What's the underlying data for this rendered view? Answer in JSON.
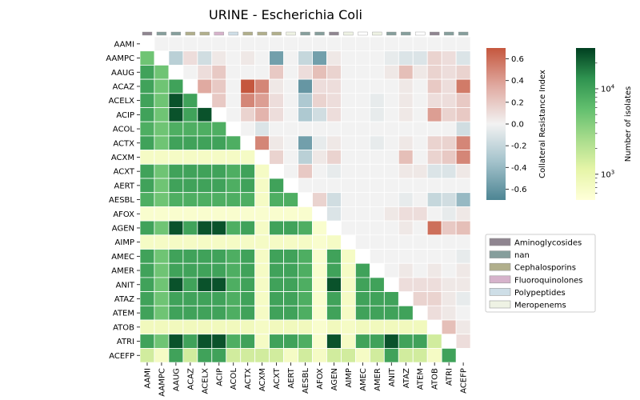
{
  "chart_data": {
    "type": "heatmap",
    "title": "URINE - Escherichia Coli",
    "labels": [
      "AAMI",
      "AAMPC",
      "AAUG",
      "ACAZ",
      "ACELX",
      "ACIP",
      "ACOL",
      "ACTX",
      "ACXM",
      "ACXT",
      "AERT",
      "AESBL",
      "AFOX",
      "AGEN",
      "AIMP",
      "AMEC",
      "AMER",
      "ANIT",
      "ATAZ",
      "ATEM",
      "ATOB",
      "ATRI",
      "ACEFP"
    ],
    "class_colors": [
      "#8f8590",
      "#869e9c",
      "#869e9c",
      "#b1af8c",
      "#b1af8c",
      "#d6b3cb",
      "#cedee7",
      "#b1af8c",
      "#b1af8c",
      "#b1af8c",
      "#eef2e4",
      "#869e9c",
      "#869e9c",
      "#8f8590",
      "#eef2e4",
      "#ffffff",
      "#eef2e4",
      "#869e9c",
      "#869e9c",
      "#ffffff",
      "#8f8590",
      "#869e9c",
      "#869e9c"
    ],
    "upper_cri": [
      [
        null,
        0,
        0,
        0,
        0,
        0,
        0,
        0,
        0,
        0,
        0,
        0,
        0,
        0,
        0,
        0,
        0,
        0,
        0,
        0,
        0,
        0,
        0
      ],
      [
        null,
        null,
        -0.25,
        0.1,
        -0.15,
        0.05,
        0,
        0.05,
        0,
        -0.55,
        0,
        -0.2,
        -0.55,
        0.05,
        0,
        0,
        0,
        -0.05,
        -0.1,
        -0.1,
        0.15,
        0.1,
        -0.1
      ],
      [
        null,
        null,
        null,
        0,
        0.1,
        0.2,
        0,
        0,
        0,
        0.2,
        0,
        0.1,
        0.25,
        0.15,
        0,
        0,
        0,
        0.05,
        0.25,
        0.05,
        0.15,
        0.1,
        0.15
      ],
      [
        null,
        null,
        null,
        null,
        0.35,
        0.2,
        0,
        0.7,
        0.5,
        0.05,
        0,
        -0.6,
        0.1,
        0.1,
        0,
        0,
        0,
        0,
        0.05,
        0,
        0.2,
        0.1,
        0.55
      ],
      [
        null,
        null,
        null,
        null,
        null,
        0.2,
        0,
        0.5,
        0.4,
        0.1,
        0,
        -0.3,
        0.15,
        0.1,
        0,
        0,
        -0.05,
        0,
        0.05,
        0,
        0.1,
        0.1,
        0.2
      ],
      [
        null,
        null,
        null,
        null,
        null,
        null,
        0,
        0.15,
        0.3,
        0.1,
        0,
        -0.3,
        -0.15,
        0.1,
        0,
        0,
        -0.05,
        0,
        0.05,
        0,
        0.4,
        0.15,
        0.2
      ],
      [
        null,
        null,
        null,
        null,
        null,
        null,
        null,
        0,
        -0.1,
        0,
        0,
        0,
        0,
        0,
        0,
        0,
        0,
        0,
        0,
        0,
        0,
        0,
        -0.15
      ],
      [
        null,
        null,
        null,
        null,
        null,
        null,
        null,
        null,
        0.5,
        0.05,
        0,
        -0.55,
        -0.05,
        0.05,
        0,
        0,
        -0.05,
        0,
        0.05,
        0,
        0.15,
        0.15,
        0.5
      ],
      [
        null,
        null,
        null,
        null,
        null,
        null,
        null,
        null,
        null,
        0.15,
        0,
        -0.25,
        0.05,
        0.15,
        0,
        0,
        0,
        0,
        0.25,
        0,
        0.15,
        0.2,
        0.5
      ],
      [
        null,
        null,
        null,
        null,
        null,
        null,
        null,
        null,
        null,
        null,
        0,
        0.2,
        0,
        -0.05,
        0,
        0,
        0,
        0,
        0.05,
        0.05,
        -0.1,
        -0.1,
        0.05
      ],
      [
        null,
        null,
        null,
        null,
        null,
        null,
        null,
        null,
        null,
        null,
        null,
        0,
        0,
        0,
        0,
        0,
        0,
        0,
        0,
        0,
        0,
        0,
        0
      ],
      [
        null,
        null,
        null,
        null,
        null,
        null,
        null,
        null,
        null,
        null,
        null,
        null,
        0.15,
        -0.15,
        0,
        0,
        0,
        0,
        -0.05,
        0,
        -0.2,
        -0.15,
        -0.4
      ],
      [
        null,
        null,
        null,
        null,
        null,
        null,
        null,
        null,
        null,
        null,
        null,
        null,
        null,
        -0.1,
        0,
        0,
        0,
        0.05,
        0.1,
        0.1,
        0,
        -0.05,
        0.05
      ],
      [
        null,
        null,
        null,
        null,
        null,
        null,
        null,
        null,
        null,
        null,
        null,
        null,
        null,
        null,
        0,
        0,
        0,
        0,
        0.05,
        0,
        0.6,
        0.2,
        0.25
      ],
      [
        null,
        null,
        null,
        null,
        null,
        null,
        null,
        null,
        null,
        null,
        null,
        null,
        null,
        null,
        null,
        0,
        0,
        0,
        0,
        0,
        0,
        0,
        0
      ],
      [
        null,
        null,
        null,
        null,
        null,
        null,
        null,
        null,
        null,
        null,
        null,
        null,
        null,
        null,
        null,
        null,
        0,
        0,
        0,
        0,
        0,
        0,
        -0.05
      ],
      [
        null,
        null,
        null,
        null,
        null,
        null,
        null,
        null,
        null,
        null,
        null,
        null,
        null,
        null,
        null,
        null,
        null,
        0,
        0.05,
        0,
        0.05,
        0,
        0.05
      ],
      [
        null,
        null,
        null,
        null,
        null,
        null,
        null,
        null,
        null,
        null,
        null,
        null,
        null,
        null,
        null,
        null,
        null,
        null,
        0.1,
        0.1,
        0.1,
        0.05,
        0.05
      ],
      [
        null,
        null,
        null,
        null,
        null,
        null,
        null,
        null,
        null,
        null,
        null,
        null,
        null,
        null,
        null,
        null,
        null,
        null,
        null,
        0.15,
        0.15,
        0.05,
        -0.05
      ],
      [
        null,
        null,
        null,
        null,
        null,
        null,
        null,
        null,
        null,
        null,
        null,
        null,
        null,
        null,
        null,
        null,
        null,
        null,
        null,
        null,
        0.1,
        0.05,
        0
      ],
      [
        null,
        null,
        null,
        null,
        null,
        null,
        null,
        null,
        null,
        null,
        null,
        null,
        null,
        null,
        null,
        null,
        null,
        null,
        null,
        null,
        null,
        0.25,
        0.05
      ],
      [
        null,
        null,
        null,
        null,
        null,
        null,
        null,
        null,
        null,
        null,
        null,
        null,
        null,
        null,
        null,
        null,
        null,
        null,
        null,
        null,
        null,
        null,
        0.1
      ],
      [
        null,
        null,
        null,
        null,
        null,
        null,
        null,
        null,
        null,
        null,
        null,
        null,
        null,
        null,
        null,
        null,
        null,
        null,
        null,
        null,
        null,
        null,
        null
      ]
    ],
    "lower_isolates": [
      [],
      [
        5000
      ],
      [
        10000,
        5000
      ],
      [
        10000,
        5000,
        10000
      ],
      [
        10000,
        5000,
        25000,
        10000
      ],
      [
        10000,
        5000,
        25000,
        10000,
        25000
      ],
      [
        8000,
        5000,
        8000,
        8000,
        8000,
        8000
      ],
      [
        10000,
        5000,
        10000,
        10000,
        10000,
        10000,
        8000
      ],
      [
        700,
        700,
        700,
        700,
        700,
        700,
        700,
        700
      ],
      [
        10000,
        5000,
        10000,
        10000,
        10000,
        10000,
        8000,
        10000,
        700
      ],
      [
        10000,
        5000,
        10000,
        10000,
        10000,
        10000,
        8000,
        10000,
        700,
        10000
      ],
      [
        8000,
        5000,
        8000,
        8000,
        8000,
        8000,
        8000,
        8000,
        700,
        8000,
        8000
      ],
      [
        600,
        600,
        600,
        600,
        600,
        600,
        600,
        600,
        600,
        600,
        600,
        600
      ],
      [
        10000,
        5000,
        25000,
        10000,
        25000,
        25000,
        8000,
        10000,
        700,
        10000,
        10000,
        8000,
        600
      ],
      [
        700,
        700,
        700,
        700,
        700,
        700,
        700,
        700,
        700,
        700,
        700,
        700,
        600,
        700
      ],
      [
        10000,
        5000,
        10000,
        10000,
        10000,
        10000,
        8000,
        10000,
        700,
        10000,
        10000,
        8000,
        600,
        10000,
        700
      ],
      [
        10000,
        5000,
        10000,
        10000,
        10000,
        10000,
        8000,
        10000,
        700,
        10000,
        10000,
        8000,
        600,
        10000,
        700,
        10000
      ],
      [
        10000,
        5000,
        25000,
        10000,
        25000,
        25000,
        8000,
        10000,
        700,
        10000,
        10000,
        8000,
        600,
        25000,
        700,
        10000,
        10000
      ],
      [
        10000,
        5000,
        10000,
        10000,
        10000,
        10000,
        8000,
        10000,
        700,
        10000,
        10000,
        8000,
        600,
        10000,
        700,
        10000,
        10000,
        10000
      ],
      [
        10000,
        5000,
        10000,
        10000,
        10000,
        10000,
        8000,
        10000,
        700,
        10000,
        10000,
        8000,
        600,
        10000,
        700,
        10000,
        10000,
        10000,
        10000
      ],
      [
        800,
        800,
        800,
        800,
        800,
        800,
        800,
        800,
        700,
        800,
        800,
        800,
        600,
        800,
        700,
        800,
        800,
        800,
        800,
        800
      ],
      [
        10000,
        5000,
        25000,
        10000,
        25000,
        25000,
        8000,
        10000,
        700,
        10000,
        10000,
        8000,
        600,
        25000,
        700,
        10000,
        10000,
        25000,
        10000,
        10000,
        1500
      ],
      [
        1500,
        700,
        10000,
        1500,
        10000,
        10000,
        1500,
        1500,
        1500,
        1500,
        700,
        1500,
        700,
        1500,
        1500,
        700,
        1500,
        10000,
        1500,
        1500,
        700,
        10000
      ]
    ],
    "cri_colorbar": {
      "label": "Collateral Resistance Index",
      "range": [
        -0.7,
        0.7
      ],
      "ticks": [
        -0.6,
        -0.4,
        -0.2,
        0.0,
        0.2,
        0.4,
        0.6
      ]
    },
    "isolates_colorbar": {
      "label": "Number of isolates",
      "scale": "log",
      "range": [
        500,
        30000
      ],
      "ticks": [
        1000,
        10000
      ]
    },
    "legend": {
      "placement": "right",
      "entries": [
        {
          "name": "Aminoglycosides",
          "color": "#8f8590"
        },
        {
          "name": "nan",
          "color": "#869e9c"
        },
        {
          "name": "Cephalosporins",
          "color": "#b1af8c"
        },
        {
          "name": "Fluoroquinolones",
          "color": "#d6b3cb"
        },
        {
          "name": "Polypeptides",
          "color": "#cedee7"
        },
        {
          "name": "Meropenems",
          "color": "#eef2e4"
        }
      ]
    }
  }
}
